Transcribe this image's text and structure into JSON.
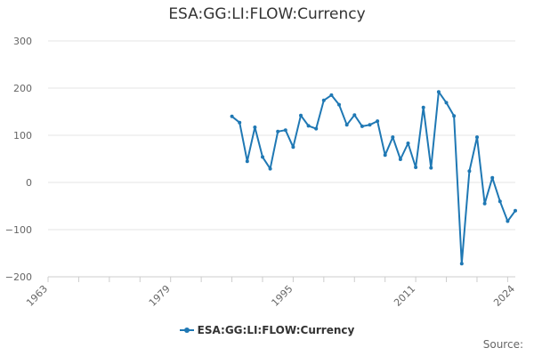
{
  "chart_data": {
    "type": "line",
    "title": "ESA:GG:LI:FLOW:Currency",
    "xlim": [
      1963,
      2024
    ],
    "ylim": [
      -200,
      300
    ],
    "xticks": [
      "1963",
      "1979",
      "1995",
      "2011",
      "2024"
    ],
    "yticks": [
      "300",
      "200",
      "100",
      "0",
      "−100",
      "−200"
    ],
    "grid": true,
    "legend_position": "bottom",
    "series": [
      {
        "name": "ESA:GG:LI:FLOW:Currency",
        "color": "#1f78b4",
        "x": [
          1987,
          1988,
          1989,
          1990,
          1991,
          1992,
          1993,
          1994,
          1995,
          1996,
          1997,
          1998,
          1999,
          2000,
          2001,
          2002,
          2003,
          2004,
          2005,
          2006,
          2007,
          2008,
          2009,
          2010,
          2011,
          2012,
          2013,
          2014,
          2015,
          2016,
          2017,
          2018,
          2019,
          2020,
          2021,
          2022,
          2023,
          2024
        ],
        "y": [
          140,
          127,
          45,
          117,
          54,
          29,
          108,
          111,
          75,
          142,
          120,
          114,
          174,
          185,
          165,
          122,
          143,
          119,
          122,
          130,
          58,
          96,
          49,
          83,
          32,
          159,
          31,
          192,
          169,
          141,
          -172,
          24,
          96,
          -45,
          10,
          -40,
          -82,
          -60
        ]
      }
    ]
  },
  "legend": {
    "label": "ESA:GG:LI:FLOW:Currency"
  },
  "credits": "Source:"
}
